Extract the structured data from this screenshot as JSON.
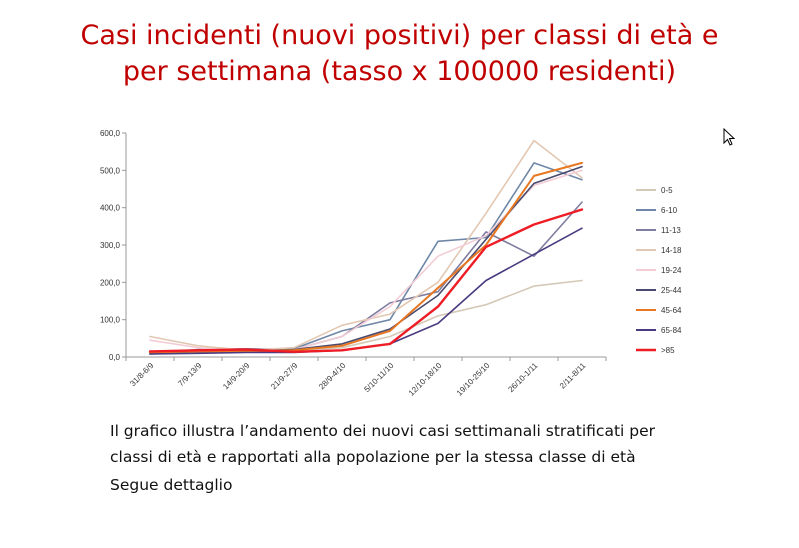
{
  "title": {
    "line1": "Casi incidenti (nuovi positivi) per classi di età e",
    "line2": "per settimana (tasso x 100000 residenti)"
  },
  "caption": {
    "line1": "Il grafico illustra l’andamento dei nuovi casi settimanali stratificati per",
    "line2": "classi di età e rapportati alla popolazione per la stessa classe di età"
  },
  "follow_text": "Segue dettaglio",
  "chart_data": {
    "type": "line",
    "categories": [
      "31/8-6/9",
      "7/9-13/9",
      "14/9-20/9",
      "21/9-27/9",
      "28/9-4/10",
      "5/10-11/10",
      "12/10-18/10",
      "19/10-25/10",
      "26/10-1/11",
      "2/11-8/11"
    ],
    "ylim": [
      0,
      600
    ],
    "yticks": [
      "0,0",
      "100,0",
      "200,0",
      "300,0",
      "400,0",
      "500,0",
      "600,0"
    ],
    "grid": false,
    "legend_position": "right",
    "series": [
      {
        "name": "0-5",
        "color": "#d4c9b6",
        "values": [
          8,
          12,
          15,
          18,
          25,
          55,
          110,
          140,
          190,
          205
        ]
      },
      {
        "name": "6-10",
        "color": "#6f87a7",
        "values": [
          8,
          15,
          20,
          22,
          70,
          100,
          310,
          320,
          520,
          475
        ]
      },
      {
        "name": "11-13",
        "color": "#7f7da0",
        "values": [
          10,
          20,
          22,
          20,
          55,
          145,
          175,
          335,
          270,
          415
        ]
      },
      {
        "name": "14-18",
        "color": "#e2c8b3",
        "values": [
          55,
          30,
          18,
          25,
          85,
          115,
          200,
          385,
          580,
          480
        ]
      },
      {
        "name": "19-24",
        "color": "#f3cdd6",
        "values": [
          45,
          25,
          15,
          20,
          55,
          135,
          270,
          325,
          460,
          500
        ]
      },
      {
        "name": "25-44",
        "color": "#4a4a6e",
        "values": [
          10,
          15,
          15,
          20,
          35,
          75,
          165,
          315,
          465,
          510
        ]
      },
      {
        "name": "45-64",
        "color": "#e87722",
        "values": [
          12,
          15,
          15,
          18,
          30,
          70,
          185,
          300,
          485,
          520
        ]
      },
      {
        "name": "65-84",
        "color": "#4a3b80",
        "values": [
          8,
          10,
          12,
          12,
          18,
          35,
          90,
          205,
          275,
          345
        ]
      },
      {
        "name": ">85",
        "color": "#ee1c25",
        "values": [
          15,
          18,
          20,
          14,
          18,
          35,
          135,
          295,
          355,
          395
        ]
      }
    ]
  }
}
